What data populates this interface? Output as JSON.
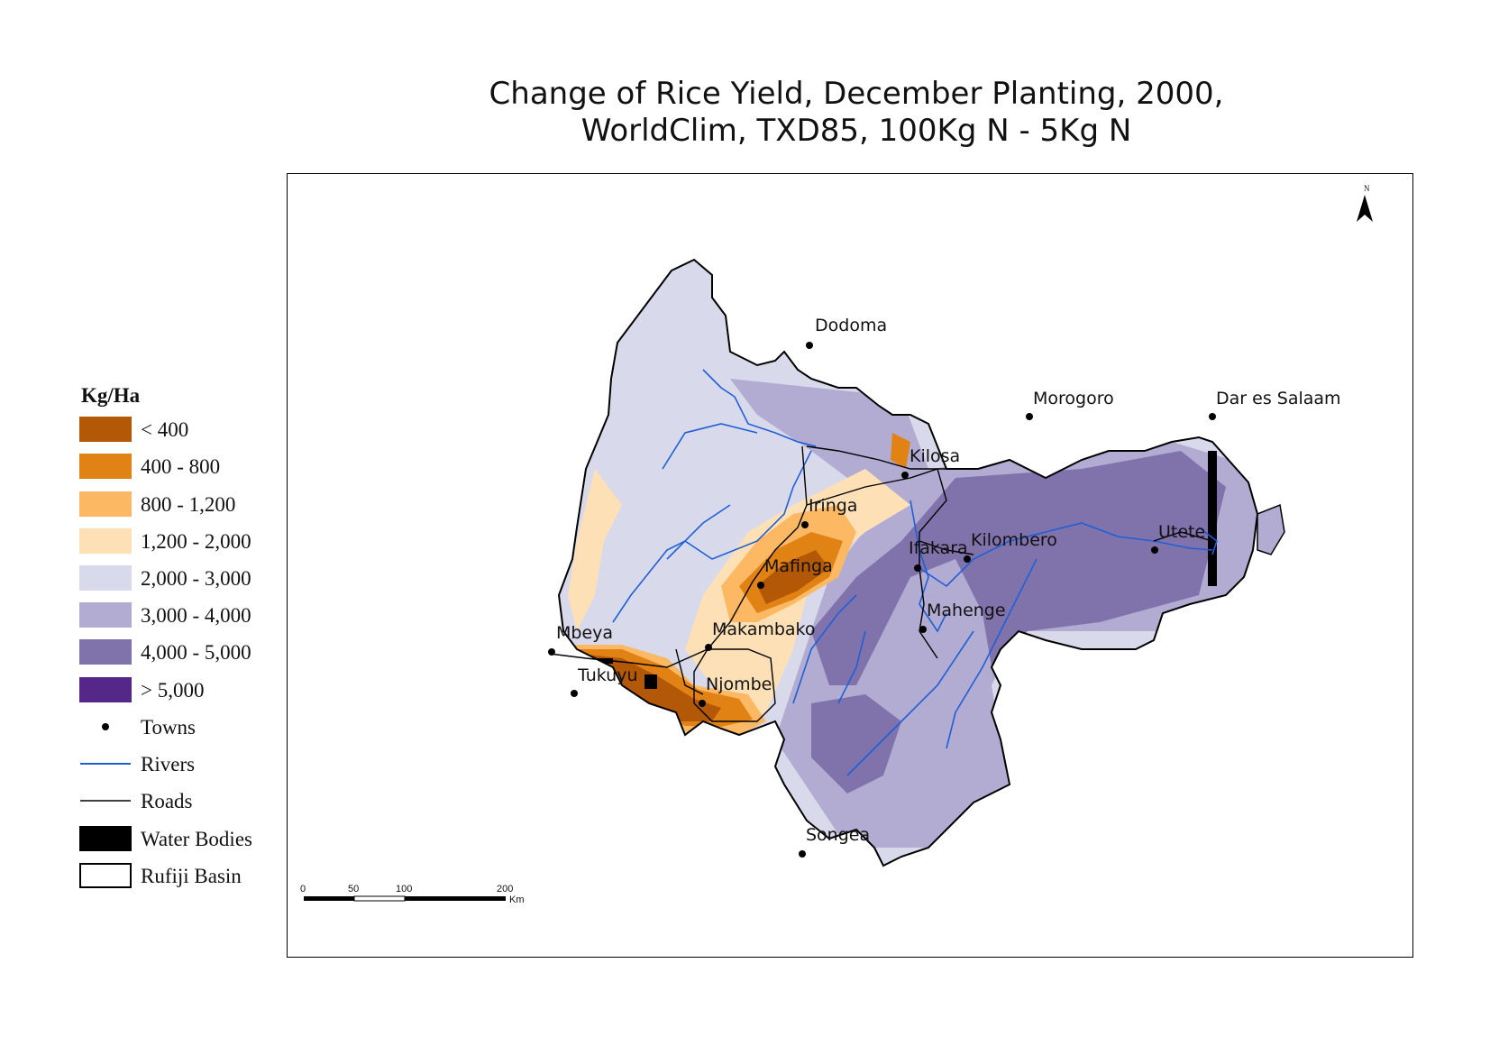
{
  "title_line1": "Change of Rice Yield, December Planting, 2000,",
  "title_line2": "WorldClim, TXD85, 100Kg N - 5Kg N",
  "north": "N",
  "legend": {
    "title": "Kg/Ha",
    "classes": [
      {
        "label": "< 400",
        "color": "#b35806"
      },
      {
        "label": "400 - 800",
        "color": "#e08214"
      },
      {
        "label": "800 - 1,200",
        "color": "#fdb863"
      },
      {
        "label": "1,200 - 2,000",
        "color": "#fee0b6"
      },
      {
        "label": "2,000 - 3,000",
        "color": "#d8daeb"
      },
      {
        "label": "3,000 - 4,000",
        "color": "#b2abd2"
      },
      {
        "label": "4,000 - 5,000",
        "color": "#8073ac"
      },
      {
        "label": "> 5,000",
        "color": "#542788"
      }
    ],
    "towns": "Towns",
    "rivers": "Rivers",
    "roads": "Roads",
    "water": "Water Bodies",
    "basin": "Rufiji Basin"
  },
  "colors": {
    "river": "#1f5fd6",
    "road": "#000000",
    "water": "#000000"
  },
  "scale": {
    "ticks": [
      "0",
      "50",
      "100",
      "200"
    ],
    "unit": "Km"
  },
  "towns": [
    "Dodoma",
    "Morogoro",
    "Dar es Salaam",
    "Kilosa",
    "Iringa",
    "Kilombero",
    "Ifakara",
    "Utete",
    "Mafinga",
    "Mahenge",
    "Mbeya",
    "Makambako",
    "Tukuyu",
    "Njombe",
    "Songea"
  ]
}
